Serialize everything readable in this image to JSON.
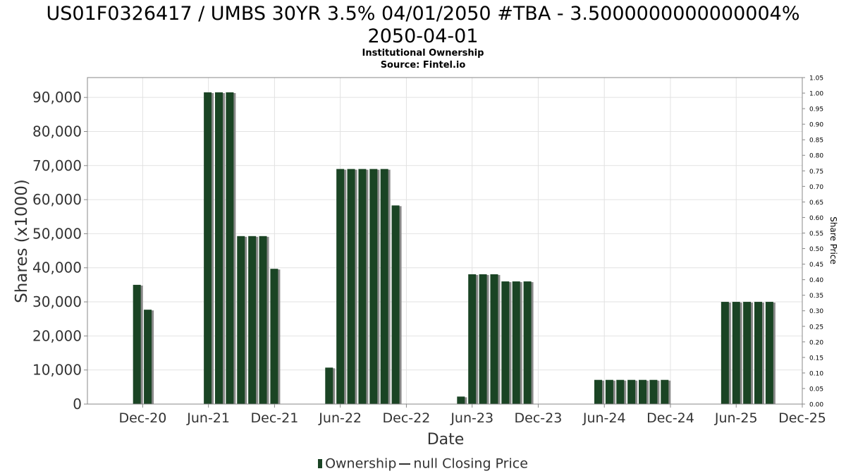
{
  "chart_data": {
    "type": "bar",
    "title_line1": "US01F0326417 / UMBS 30YR 3.5% 04/01/2050 #TBA - 3.5000000000000004%",
    "title_line2": "2050-04-01",
    "subtitle": "Institutional Ownership",
    "source": "Source: Fintel.io",
    "xlabel": "Date",
    "ylabel": "Shares (x1000)",
    "y2label": "Share Price",
    "ylim": [
      0,
      95833
    ],
    "y2lim": [
      0,
      1.05
    ],
    "yticks": [
      0,
      10000,
      20000,
      30000,
      40000,
      50000,
      60000,
      70000,
      80000,
      90000
    ],
    "yticklabels": [
      "0",
      "10,000",
      "20,000",
      "30,000",
      "40,000",
      "50,000",
      "60,000",
      "70,000",
      "80,000",
      "90,000"
    ],
    "y2ticklabels": [
      "0.00",
      "0.05",
      "0.10",
      "0.15",
      "0.20",
      "0.25",
      "0.30",
      "0.35",
      "0.40",
      "0.45",
      "0.50",
      "0.55",
      "0.60",
      "0.65",
      "0.70",
      "0.75",
      "0.80",
      "0.85",
      "0.90",
      "0.95",
      "1.00",
      "1.05"
    ],
    "xlim": [
      "2020-07-01",
      "2025-12-01"
    ],
    "xticks": [
      {
        "date": "2020-12-01",
        "label": "Dec-20"
      },
      {
        "date": "2021-06-01",
        "label": "Jun-21"
      },
      {
        "date": "2021-12-01",
        "label": "Dec-21"
      },
      {
        "date": "2022-06-01",
        "label": "Jun-22"
      },
      {
        "date": "2022-12-01",
        "label": "Dec-22"
      },
      {
        "date": "2023-06-01",
        "label": "Jun-23"
      },
      {
        "date": "2023-12-01",
        "label": "Dec-23"
      },
      {
        "date": "2024-06-01",
        "label": "Jun-24"
      },
      {
        "date": "2024-12-01",
        "label": "Dec-24"
      },
      {
        "date": "2025-06-01",
        "label": "Jun-25"
      },
      {
        "date": "2025-12-01",
        "label": "Dec-25"
      }
    ],
    "grid": true,
    "legend_position": "bottom",
    "series": [
      {
        "name": "Ownership",
        "color": "#1a4424",
        "points": [
          {
            "date": "2020-11-15",
            "value": 35000
          },
          {
            "date": "2020-12-15",
            "value": 27700
          },
          {
            "date": "2021-05-30",
            "value": 91500
          },
          {
            "date": "2021-06-30",
            "value": 91500
          },
          {
            "date": "2021-07-30",
            "value": 91500
          },
          {
            "date": "2021-08-30",
            "value": 49300
          },
          {
            "date": "2021-09-30",
            "value": 49300
          },
          {
            "date": "2021-10-30",
            "value": 49300
          },
          {
            "date": "2021-11-30",
            "value": 39700
          },
          {
            "date": "2022-05-01",
            "value": 10700
          },
          {
            "date": "2022-06-01",
            "value": 69000
          },
          {
            "date": "2022-07-01",
            "value": 69000
          },
          {
            "date": "2022-08-01",
            "value": 69000
          },
          {
            "date": "2022-09-01",
            "value": 69000
          },
          {
            "date": "2022-10-01",
            "value": 69000
          },
          {
            "date": "2022-11-01",
            "value": 58300
          },
          {
            "date": "2023-05-01",
            "value": 2200
          },
          {
            "date": "2023-06-01",
            "value": 38100
          },
          {
            "date": "2023-07-01",
            "value": 38100
          },
          {
            "date": "2023-08-01",
            "value": 38100
          },
          {
            "date": "2023-09-01",
            "value": 36000
          },
          {
            "date": "2023-10-01",
            "value": 36000
          },
          {
            "date": "2023-11-01",
            "value": 36000
          },
          {
            "date": "2024-05-15",
            "value": 7100
          },
          {
            "date": "2024-06-15",
            "value": 7100
          },
          {
            "date": "2024-07-15",
            "value": 7100
          },
          {
            "date": "2024-08-15",
            "value": 7100
          },
          {
            "date": "2024-09-15",
            "value": 7100
          },
          {
            "date": "2024-10-15",
            "value": 7100
          },
          {
            "date": "2024-11-15",
            "value": 7100
          },
          {
            "date": "2025-05-01",
            "value": 30000
          },
          {
            "date": "2025-06-01",
            "value": 30000
          },
          {
            "date": "2025-07-01",
            "value": 30000
          },
          {
            "date": "2025-08-01",
            "value": 30000
          },
          {
            "date": "2025-09-01",
            "value": 30000
          }
        ]
      },
      {
        "name": "null Closing Price",
        "color": "#333333",
        "points": []
      }
    ]
  }
}
